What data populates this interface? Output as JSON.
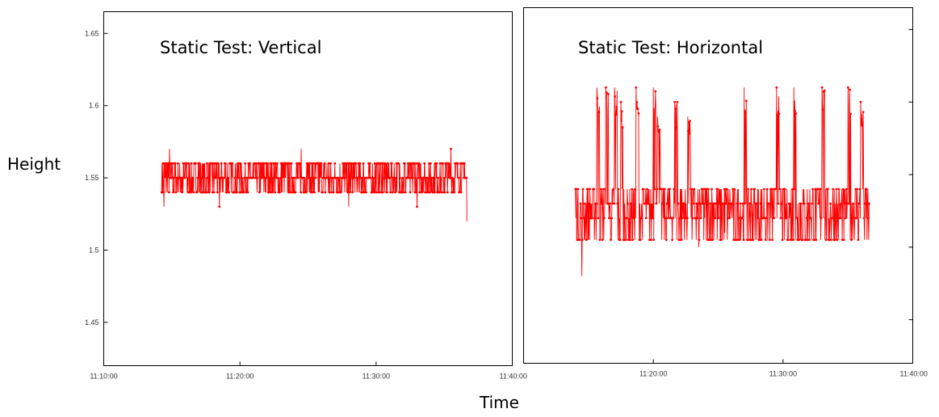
{
  "chart_data": {
    "type": "line",
    "ylabel": "Height",
    "xlabel": "Time",
    "series_color": "#ff0000",
    "panels": [
      {
        "title": "Static Test: Vertical",
        "xlim": [
          "11:10:00",
          "11:40:00"
        ],
        "ylim": [
          1.42,
          1.665
        ],
        "x_ticks": [
          "11:10:00",
          "11:20:00",
          "11:30:00",
          "11:40:00"
        ],
        "y_ticks": [
          "1.45",
          "1.5",
          "1.55",
          "1.6",
          "1.65"
        ],
        "x_range": [
          "11:14:15",
          "11:36:40"
        ],
        "typical_values": [
          1.54,
          1.55,
          1.56
        ],
        "points": [
          {
            "x": "11:14:15",
            "y": 1.54
          },
          {
            "x": "11:14:25",
            "y": 1.53
          },
          {
            "x": "11:14:50",
            "y": 1.57
          },
          {
            "x": "11:16:00",
            "y": 1.56
          },
          {
            "x": "11:18:30",
            "y": 1.53
          },
          {
            "x": "11:20:00",
            "y": 1.56
          },
          {
            "x": "11:24:30",
            "y": 1.57
          },
          {
            "x": "11:25:00",
            "y": 1.56
          },
          {
            "x": "11:28:00",
            "y": 1.53
          },
          {
            "x": "11:30:00",
            "y": 1.54
          },
          {
            "x": "11:33:00",
            "y": 1.53
          },
          {
            "x": "11:35:30",
            "y": 1.57
          },
          {
            "x": "11:36:30",
            "y": 1.56
          },
          {
            "x": "11:36:40",
            "y": 1.52
          }
        ]
      },
      {
        "title": "Static Test: Horizontal",
        "xlim": [
          "11:10:00",
          "11:40:00"
        ],
        "ylim": [
          1.42,
          1.665
        ],
        "x_ticks": [
          "11:20:00",
          "11:30:00",
          "11:40:00"
        ],
        "y_ticks": [],
        "x_range": [
          "11:14:00",
          "11:36:40"
        ],
        "typical_values": [
          1.505,
          1.52,
          1.53,
          1.54
        ],
        "points": [
          {
            "x": "11:14:00",
            "y": 1.54
          },
          {
            "x": "11:14:30",
            "y": 1.48
          },
          {
            "x": "11:15:40",
            "y": 1.61
          },
          {
            "x": "11:16:20",
            "y": 1.61
          },
          {
            "x": "11:17:00",
            "y": 1.61
          },
          {
            "x": "11:17:30",
            "y": 1.6
          },
          {
            "x": "11:18:40",
            "y": 1.61
          },
          {
            "x": "11:20:00",
            "y": 1.61
          },
          {
            "x": "11:20:20",
            "y": 1.59
          },
          {
            "x": "11:21:40",
            "y": 1.6
          },
          {
            "x": "11:22:40",
            "y": 1.59
          },
          {
            "x": "11:23:30",
            "y": 1.5
          },
          {
            "x": "11:25:30",
            "y": 1.51
          },
          {
            "x": "11:27:00",
            "y": 1.61
          },
          {
            "x": "11:29:30",
            "y": 1.61
          },
          {
            "x": "11:30:50",
            "y": 1.61
          },
          {
            "x": "11:33:00",
            "y": 1.61
          },
          {
            "x": "11:35:00",
            "y": 1.61
          },
          {
            "x": "11:36:00",
            "y": 1.6
          },
          {
            "x": "11:36:40",
            "y": 1.53
          }
        ]
      }
    ]
  }
}
